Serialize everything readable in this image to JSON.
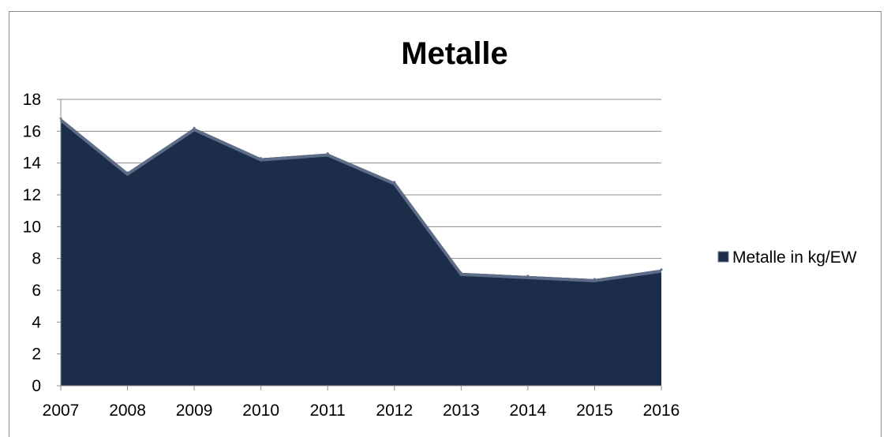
{
  "chart_data": {
    "type": "area",
    "title": "Metalle",
    "xlabel": "",
    "ylabel": "",
    "x": [
      "2007",
      "2008",
      "2009",
      "2010",
      "2011",
      "2012",
      "2013",
      "2014",
      "2015",
      "2016"
    ],
    "series": [
      {
        "name": "Metalle in kg/EW",
        "values": [
          16.8,
          13.4,
          16.2,
          14.3,
          14.6,
          12.8,
          7.1,
          6.9,
          6.7,
          7.3
        ],
        "color": "#1c2d4a"
      }
    ],
    "ylim": [
      0,
      18
    ],
    "yticks": [
      "0",
      "2",
      "4",
      "6",
      "8",
      "10",
      "12",
      "14",
      "16",
      "18"
    ],
    "grid": true,
    "legend": "right"
  }
}
